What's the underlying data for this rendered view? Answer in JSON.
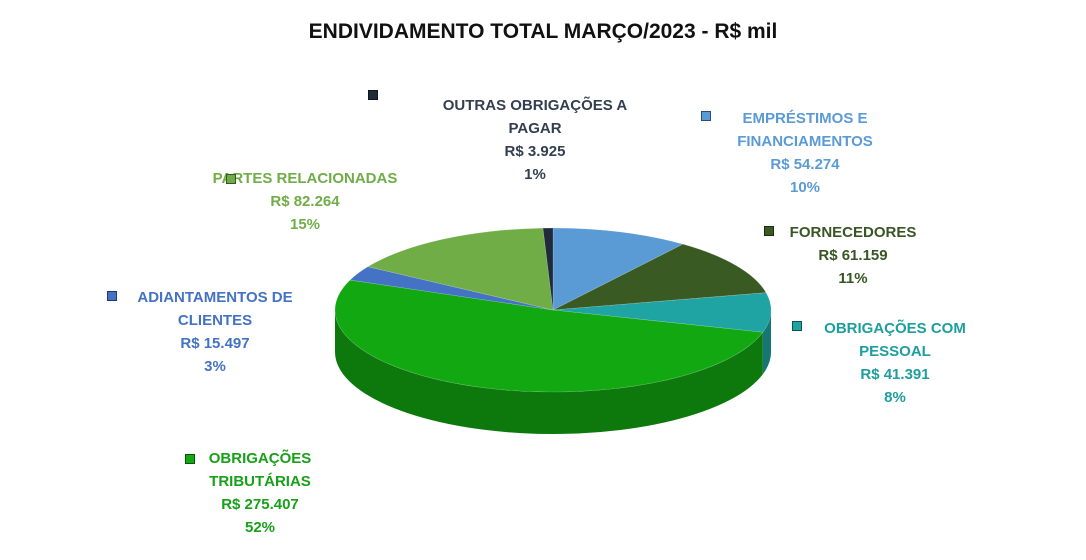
{
  "chart_data": {
    "type": "pie",
    "title": "ENDIVIDAMENTO TOTAL MARÇO/2023 - R$ mil",
    "categories": [
      "EMPRÉSTIMOS E FINANCIAMENTOS",
      "FORNECEDORES",
      "OBRIGAÇÕES COM PESSOAL",
      "OBRIGAÇÕES TRIBUTÁRIAS",
      "ADIANTAMENTOS DE CLIENTES",
      "PARTES RELACIONADAS",
      "OUTRAS OBRIGAÇÕES A PAGAR"
    ],
    "values": [
      54274,
      61159,
      41391,
      275407,
      15497,
      82264,
      3925
    ],
    "value_labels": [
      "R$ 54.274",
      "R$ 61.159",
      "R$ 41.391",
      "R$ 275.407",
      "R$ 15.497",
      "R$ 82.264",
      "R$ 3.925"
    ],
    "percent_labels": [
      "10%",
      "11%",
      "8%",
      "52%",
      "3%",
      "15%",
      "1%"
    ],
    "colors": [
      "#5b9bd5",
      "#3a5a24",
      "#1fa3a3",
      "#12a812",
      "#4472c4",
      "#70ad47",
      "#1f2a3a"
    ],
    "label_colors": [
      "#5b9bd5",
      "#375623",
      "#1e9e9e",
      "#18a018",
      "#4472c4",
      "#70ad47",
      "#333f50"
    ]
  }
}
